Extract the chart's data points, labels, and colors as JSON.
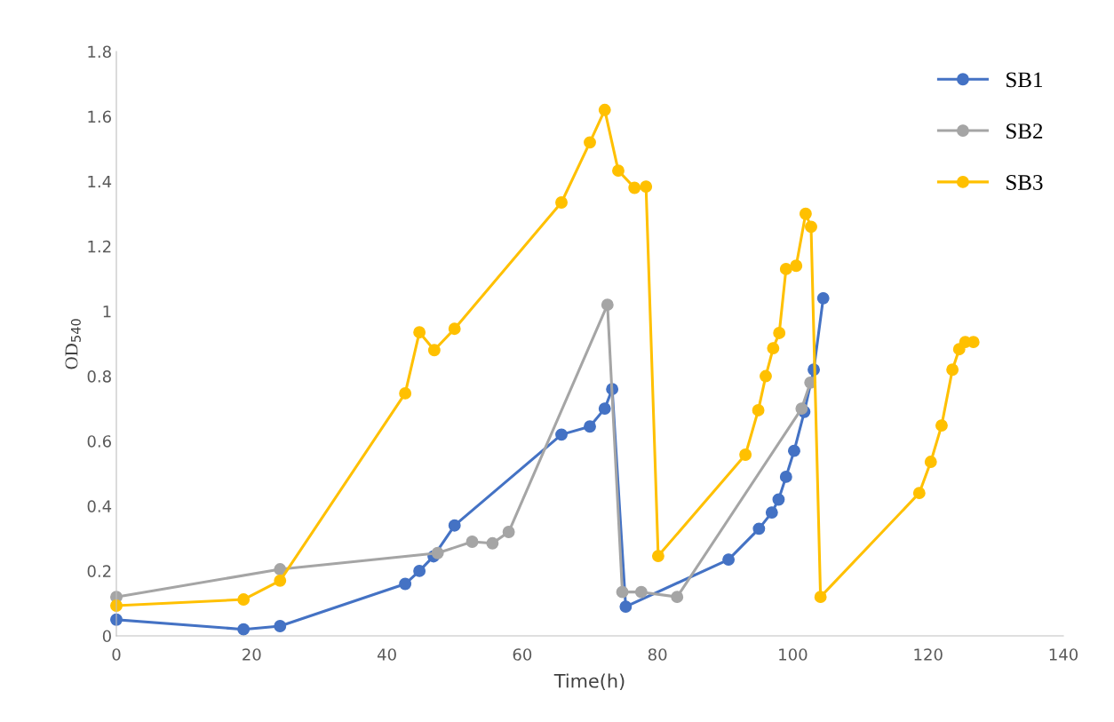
{
  "chart_data": {
    "type": "line",
    "xlabel": "Time(h)",
    "ylabel": "OD$_{540}$",
    "xlim": [
      0,
      140
    ],
    "xticks": [
      0,
      20,
      40,
      60,
      80,
      100,
      120,
      140
    ],
    "ylim": [
      0,
      1.8
    ],
    "yticks": [
      0,
      0.2,
      0.4,
      0.6,
      0.8,
      {
        "value": 1,
        "label": "1"
      },
      1.2,
      1.4,
      1.6,
      1.8
    ],
    "marker": "circle",
    "line_style": "solid",
    "grid": false,
    "legend": "top right",
    "series": [
      {
        "name": "SB1",
        "color": "#4472c4",
        "x": [
          0,
          18.8,
          24.2,
          42.7,
          44.8,
          46.9,
          50,
          65.8,
          70,
          72.2,
          73.3,
          75.3,
          90.5,
          95,
          96.9,
          97.9,
          99,
          100.2,
          101.7,
          103.1,
          104.5
        ],
        "values": [
          0.05,
          0.02,
          0.03,
          0.16,
          0.2,
          0.245,
          0.34,
          0.62,
          0.645,
          0.7,
          0.76,
          0.09,
          0.235,
          0.33,
          0.38,
          0.42,
          0.49,
          0.57,
          0.69,
          0.82,
          1.04
        ]
      },
      {
        "name": "SB2",
        "color": "#a5a5a5",
        "x": [
          0,
          24.2,
          47.5,
          52.6,
          55.6,
          58,
          72.6,
          74.8,
          77.6,
          82.9,
          101.3,
          102.6
        ],
        "values": [
          0.12,
          0.205,
          0.255,
          0.29,
          0.285,
          0.32,
          1.02,
          0.135,
          0.135,
          0.12,
          0.7,
          0.78
        ]
      },
      {
        "name": "SB3",
        "color": "#ffc000",
        "x": [
          0,
          18.8,
          24.2,
          42.7,
          44.8,
          47,
          50,
          65.8,
          70,
          72.2,
          74.2,
          76.6,
          78.3,
          80.1,
          93,
          94.9,
          96,
          97.1,
          98,
          99,
          100.5,
          101.9,
          102.7,
          104.1,
          118.7,
          120.4,
          122,
          123.6,
          124.6,
          125.5,
          126.7
        ],
        "values": [
          0.093,
          0.112,
          0.17,
          0.747,
          0.935,
          0.88,
          0.946,
          1.335,
          1.52,
          1.62,
          1.433,
          1.38,
          1.384,
          0.246,
          0.558,
          0.695,
          0.8,
          0.886,
          0.933,
          1.13,
          1.14,
          1.3,
          1.26,
          0.12,
          0.44,
          0.536,
          0.648,
          0.82,
          0.883,
          0.905,
          0.905
        ]
      }
    ]
  }
}
